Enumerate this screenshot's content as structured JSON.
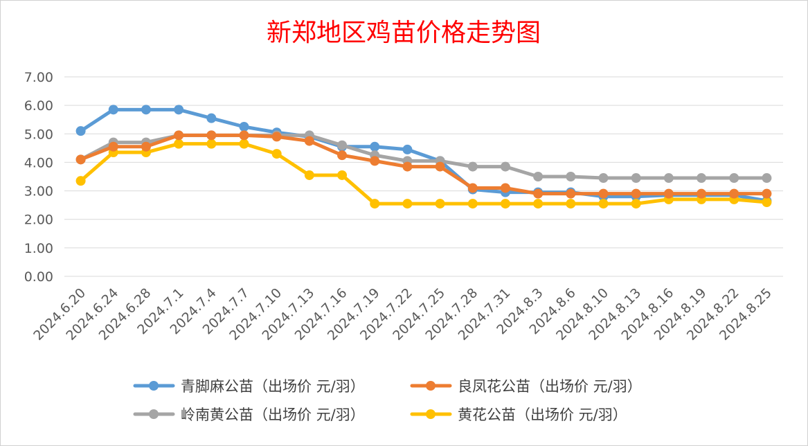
{
  "chart_data": {
    "type": "line",
    "title": "新郑地区鸡苗价格走势图",
    "title_color": "#ff0000",
    "categories": [
      "2024.6.20",
      "2024.6.24",
      "2024.6.28",
      "2024.7.1",
      "2024.7.4",
      "2024.7.7",
      "2024.7.10",
      "2024.7.13",
      "2024.7.16",
      "2024.7.19",
      "2024.7.22",
      "2024.7.25",
      "2024.7.28",
      "2024.7.31",
      "2024.8.3",
      "2024.8.6",
      "2024.8.10",
      "2024.8.13",
      "2024.8.16",
      "2024.8.19",
      "2024.8.22",
      "2024.8.25"
    ],
    "yticks": [
      "0.00",
      "1.00",
      "2.00",
      "3.00",
      "4.00",
      "5.00",
      "6.00",
      "7.00"
    ],
    "ylim": [
      0,
      7
    ],
    "grid": true,
    "legend_position": "bottom",
    "series": [
      {
        "name": "青脚麻公苗（出场价 元/羽）",
        "color": "#5b9bd5",
        "values": [
          5.1,
          5.85,
          5.85,
          5.85,
          5.55,
          5.25,
          5.05,
          4.9,
          4.55,
          4.55,
          4.45,
          4.05,
          3.05,
          2.95,
          2.95,
          2.95,
          2.8,
          2.8,
          2.85,
          2.85,
          2.85,
          2.65
        ]
      },
      {
        "name": "良凤花公苗（出场价 元/羽）",
        "color": "#ed7d31",
        "values": [
          4.1,
          4.55,
          4.55,
          4.95,
          4.95,
          4.95,
          4.9,
          4.75,
          4.25,
          4.05,
          3.85,
          3.85,
          3.1,
          3.1,
          2.9,
          2.9,
          2.9,
          2.9,
          2.9,
          2.9,
          2.9,
          2.9
        ]
      },
      {
        "name": "岭南黄公苗（出场价 元/羽）",
        "color": "#a5a5a5",
        "values": [
          4.1,
          4.7,
          4.7,
          4.95,
          4.95,
          4.95,
          4.95,
          4.95,
          4.6,
          4.25,
          4.05,
          4.05,
          3.85,
          3.85,
          3.5,
          3.5,
          3.45,
          3.45,
          3.45,
          3.45,
          3.45,
          3.45
        ]
      },
      {
        "name": "黄花公苗（出场价 元/羽）",
        "color": "#ffc000",
        "values": [
          3.35,
          4.35,
          4.35,
          4.65,
          4.65,
          4.65,
          4.3,
          3.55,
          3.55,
          2.55,
          2.55,
          2.55,
          2.55,
          2.55,
          2.55,
          2.55,
          2.55,
          2.55,
          2.7,
          2.7,
          2.7,
          2.6
        ]
      }
    ]
  }
}
